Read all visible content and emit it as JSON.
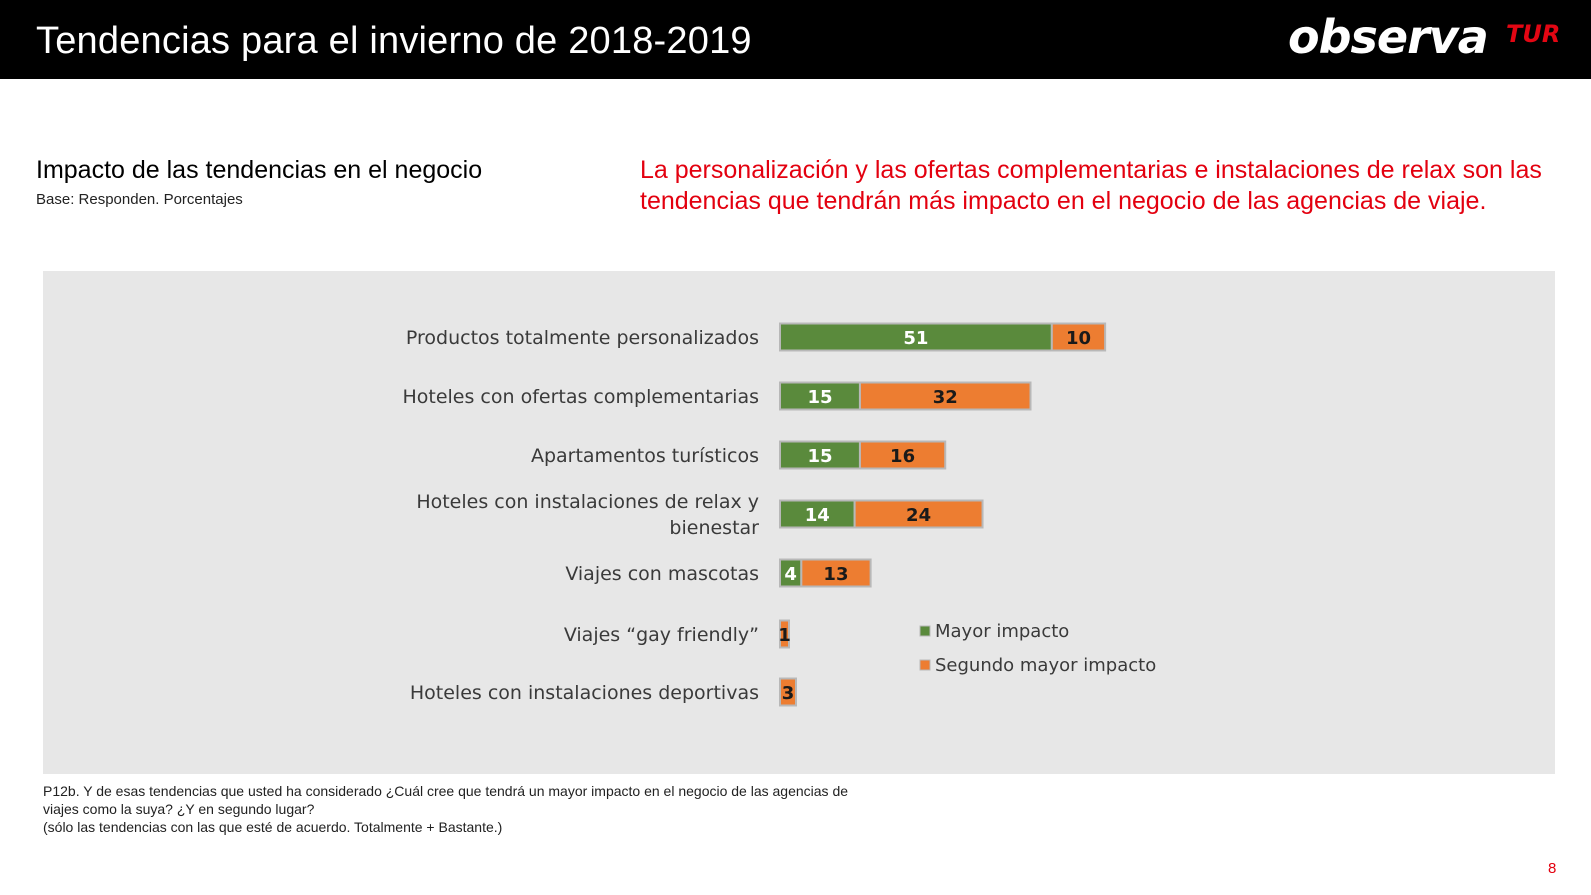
{
  "header": {
    "title": "Tendencias para el invierno de 2018-2019",
    "logo_main": "observa",
    "logo_sub": "TUR"
  },
  "subtitle": "Impacto de las tendencias en el negocio",
  "base_text": "Base: Responden.  Porcentajes",
  "headline": "La personalización y las ofertas complementarias e instalaciones de relax son las tendencias que tendrán más impacto en el negocio de las agencias de viaje.",
  "footnote": {
    "line1": "P12b. Y de esas tendencias que usted ha considerado ¿Cuál cree que tendrá un mayor impacto en el negocio de las agencias de",
    "line2": "viajes como la suya? ¿Y en segundo lugar?",
    "line3": "(sólo las tendencias con las que esté de acuerdo. Totalmente + Bastante.)"
  },
  "page_number": "8",
  "colors": {
    "series1": "#5a8a3c",
    "series2": "#ed7d31",
    "panel": "#e7e7e7",
    "accent": "#e3000f"
  },
  "chart_data": {
    "type": "bar",
    "orientation": "horizontal",
    "stacked": true,
    "categories": [
      [
        "Productos totalmente personalizados"
      ],
      [
        "Hoteles con ofertas complementarias"
      ],
      [
        "Apartamentos turísticos"
      ],
      [
        "Hoteles con instalaciones de relax y",
        "bienestar"
      ],
      [
        "Viajes con mascotas"
      ],
      [
        "Viajes “gay friendly”"
      ],
      [
        "Hoteles con instalaciones deportivas"
      ]
    ],
    "series": [
      {
        "name": "Mayor impacto",
        "color": "#5a8a3c",
        "values": [
          51,
          15,
          15,
          14,
          4,
          null,
          null
        ]
      },
      {
        "name": "Segundo mayor impacto",
        "color": "#ed7d31",
        "values": [
          10,
          32,
          16,
          24,
          13,
          1,
          3
        ]
      }
    ],
    "legend_position": "right",
    "grid": false,
    "xlim": [
      0,
      61
    ]
  }
}
